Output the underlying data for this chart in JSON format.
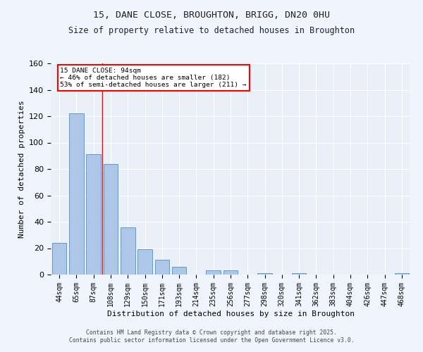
{
  "title1": "15, DANE CLOSE, BROUGHTON, BRIGG, DN20 0HU",
  "title2": "Size of property relative to detached houses in Broughton",
  "xlabel": "Distribution of detached houses by size in Broughton",
  "ylabel": "Number of detached properties",
  "categories": [
    "44sqm",
    "65sqm",
    "87sqm",
    "108sqm",
    "129sqm",
    "150sqm",
    "171sqm",
    "193sqm",
    "214sqm",
    "235sqm",
    "256sqm",
    "277sqm",
    "298sqm",
    "320sqm",
    "341sqm",
    "362sqm",
    "383sqm",
    "404sqm",
    "426sqm",
    "447sqm",
    "468sqm"
  ],
  "values": [
    24,
    122,
    91,
    84,
    36,
    19,
    11,
    6,
    0,
    3,
    3,
    0,
    1,
    0,
    1,
    0,
    0,
    0,
    0,
    0,
    1
  ],
  "bar_color": "#aec6e8",
  "bar_edge_color": "#5b9bd5",
  "ylim": [
    0,
    160
  ],
  "yticks": [
    0,
    20,
    40,
    60,
    80,
    100,
    120,
    140,
    160
  ],
  "red_line_x": 2.5,
  "annotation_title": "15 DANE CLOSE: 94sqm",
  "annotation_line1": "← 46% of detached houses are smaller (182)",
  "annotation_line2": "53% of semi-detached houses are larger (211) →",
  "bg_color": "#eaf0f8",
  "fig_bg_color": "#f0f4fc",
  "grid_color": "#ffffff",
  "footer1": "Contains HM Land Registry data © Crown copyright and database right 2025.",
  "footer2": "Contains public sector information licensed under the Open Government Licence v3.0."
}
